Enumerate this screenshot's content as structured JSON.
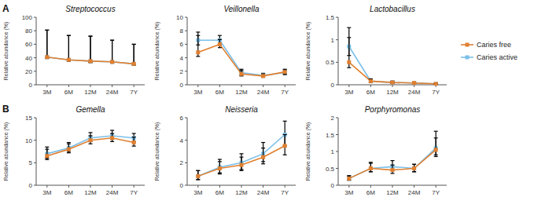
{
  "chart_data": [
    {
      "type": "line",
      "title": "Streptococcus",
      "y_label": "Relative abundance (%)",
      "annotation": "A",
      "legend": "right",
      "grid": false,
      "marker": "square",
      "categories": [
        "3M",
        "6M",
        "12M",
        "24M",
        "7Y"
      ],
      "ylim": [
        0,
        100
      ],
      "yticks": [
        0,
        20,
        40,
        60,
        80,
        100
      ],
      "series": [
        {
          "name": "Caries free",
          "color": "#E08030",
          "values": [
            41,
            37,
            35,
            34,
            31
          ],
          "err_low": [
            2,
            2,
            2,
            2,
            2
          ],
          "err_high": [
            40,
            36,
            37,
            32,
            29
          ]
        },
        {
          "name": "Caries active",
          "color": "#7BBFE8",
          "values": [
            41,
            37,
            35,
            34,
            31
          ],
          "err_low": [
            2,
            2,
            2,
            2,
            2
          ],
          "err_high": [
            40,
            36,
            37,
            32,
            29
          ]
        }
      ]
    },
    {
      "type": "line",
      "title": "Veillonella",
      "y_label": "Relative abundance (%)",
      "grid": false,
      "marker": "square",
      "categories": [
        "3M",
        "6M",
        "12M",
        "24M",
        "7Y"
      ],
      "ylim": [
        0,
        10
      ],
      "yticks": [
        0,
        2,
        4,
        6,
        8,
        10
      ],
      "series": [
        {
          "name": "Caries free",
          "color": "#E08030",
          "values": [
            4.8,
            6.0,
            1.6,
            1.3,
            1.9
          ],
          "err_low": [
            0.6,
            0.5,
            0.3,
            0.2,
            0.3
          ],
          "err_high": [
            2.5,
            0.7,
            0.5,
            0.3,
            0.4
          ]
        },
        {
          "name": "Caries active",
          "color": "#7BBFE8",
          "values": [
            6.6,
            6.6,
            1.8,
            1.4,
            1.8
          ],
          "err_low": [
            0.7,
            0.7,
            0.4,
            0.2,
            0.3
          ],
          "err_high": [
            1.2,
            0.7,
            0.5,
            0.3,
            0.4
          ]
        }
      ]
    },
    {
      "type": "line",
      "title": "Lactobacillus",
      "y_label": "Relative abundance (%)",
      "grid": false,
      "marker": "square",
      "categories": [
        "3M",
        "6M",
        "12M",
        "24M",
        "7Y"
      ],
      "ylim": [
        0,
        1.5
      ],
      "yticks": [
        0,
        0.5,
        1,
        1.5
      ],
      "series": [
        {
          "name": "Caries free",
          "color": "#E08030",
          "values": [
            0.5,
            0.08,
            0.05,
            0.04,
            0.02
          ],
          "err_low": [
            0.12,
            0.03,
            0.02,
            0.02,
            0.01
          ],
          "err_high": [
            0.55,
            0.05,
            0.03,
            0.02,
            0.01
          ]
        },
        {
          "name": "Caries active",
          "color": "#7BBFE8",
          "values": [
            0.85,
            0.08,
            0.05,
            0.04,
            0.02
          ],
          "err_low": [
            0.2,
            0.03,
            0.02,
            0.02,
            0.01
          ],
          "err_high": [
            0.42,
            0.05,
            0.03,
            0.02,
            0.01
          ]
        }
      ]
    },
    {
      "type": "line",
      "title": "Gemella",
      "y_label": "Relative abundance (%)",
      "annotation": "B",
      "grid": false,
      "marker": "square",
      "categories": [
        "3M",
        "6M",
        "12M",
        "24M",
        "7Y"
      ],
      "ylim": [
        0,
        15
      ],
      "yticks": [
        0,
        5,
        10,
        15
      ],
      "series": [
        {
          "name": "Caries free",
          "color": "#E08030",
          "values": [
            6.5,
            8.0,
            10.0,
            10.5,
            9.5
          ],
          "err_low": [
            0.8,
            0.8,
            0.8,
            0.8,
            0.8
          ],
          "err_high": [
            1.5,
            1.2,
            1.0,
            1.0,
            1.2
          ]
        },
        {
          "name": "Caries active",
          "color": "#7BBFE8",
          "values": [
            7.0,
            8.3,
            10.5,
            11.0,
            10.5
          ],
          "err_low": [
            1.0,
            0.8,
            0.8,
            0.8,
            0.8
          ],
          "err_high": [
            1.5,
            1.2,
            1.2,
            1.2,
            1.0
          ]
        }
      ]
    },
    {
      "type": "line",
      "title": "Neisseria",
      "y_label": "Relative abundance (%)",
      "grid": false,
      "marker": "square",
      "categories": [
        "3M",
        "6M",
        "12M",
        "24M",
        "7Y"
      ],
      "ylim": [
        0,
        6
      ],
      "yticks": [
        0,
        2,
        4,
        6
      ],
      "series": [
        {
          "name": "Caries free",
          "color": "#E08030",
          "values": [
            0.8,
            1.5,
            1.8,
            2.5,
            3.5
          ],
          "err_low": [
            0.3,
            0.5,
            0.5,
            0.6,
            0.8
          ],
          "err_high": [
            0.5,
            0.6,
            0.7,
            0.8,
            1.0
          ]
        },
        {
          "name": "Caries active",
          "color": "#7BBFE8",
          "values": [
            0.8,
            1.6,
            2.0,
            2.8,
            4.5
          ],
          "err_low": [
            0.3,
            0.5,
            0.6,
            0.7,
            1.0
          ],
          "err_high": [
            0.5,
            0.7,
            0.8,
            1.0,
            1.2
          ]
        }
      ]
    },
    {
      "type": "line",
      "title": "Porphyromonas",
      "y_label": "Relative abundance (%)",
      "grid": false,
      "marker": "square",
      "categories": [
        "3M",
        "6M",
        "12M",
        "24M",
        "7Y"
      ],
      "ylim": [
        0,
        2.0
      ],
      "yticks": [
        0,
        0.5,
        1,
        1.5,
        2
      ],
      "series": [
        {
          "name": "Caries free",
          "color": "#E08030",
          "values": [
            0.2,
            0.5,
            0.45,
            0.5,
            1.05
          ],
          "err_low": [
            0.05,
            0.1,
            0.1,
            0.1,
            0.2
          ],
          "err_high": [
            0.08,
            0.15,
            0.15,
            0.12,
            0.35
          ]
        },
        {
          "name": "Caries active",
          "color": "#7BBFE8",
          "values": [
            0.2,
            0.5,
            0.55,
            0.5,
            1.1
          ],
          "err_low": [
            0.05,
            0.1,
            0.1,
            0.1,
            0.2
          ],
          "err_high": [
            0.08,
            0.18,
            0.18,
            0.12,
            0.5
          ]
        }
      ]
    }
  ]
}
